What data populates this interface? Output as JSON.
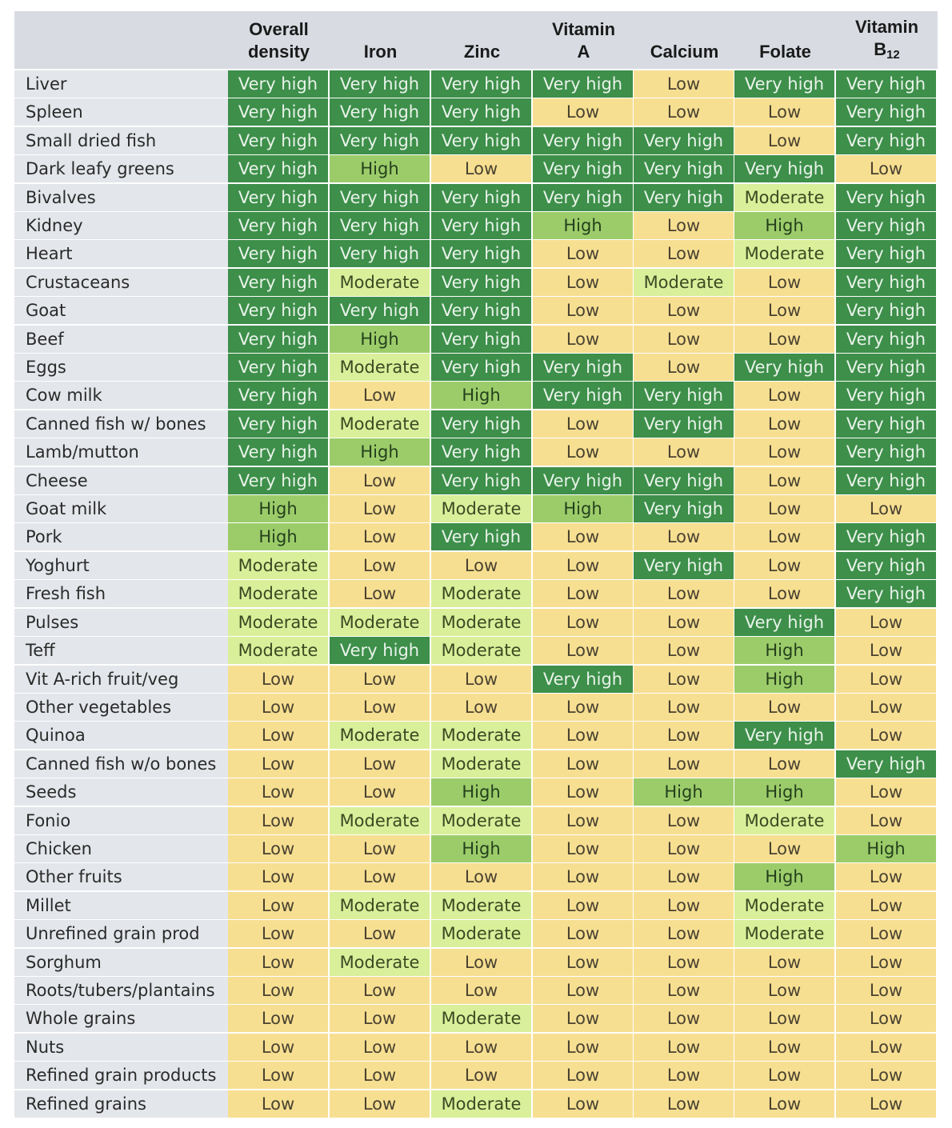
{
  "chart_data": {
    "type": "table",
    "columns": [
      {
        "lines": [
          "Overall",
          "density"
        ]
      },
      {
        "lines": [
          "Iron"
        ]
      },
      {
        "lines": [
          "Zinc"
        ]
      },
      {
        "lines": [
          "Vitamin",
          "A"
        ]
      },
      {
        "lines": [
          "Calcium"
        ]
      },
      {
        "lines": [
          "Folate"
        ]
      },
      {
        "lines": [
          "Vitamin",
          "B"
        ],
        "subscript": "12"
      }
    ],
    "level_colors": {
      "Very high": "#3d8f4a",
      "High": "#9ccc6a",
      "Moderate": "#d9ef9a",
      "Low": "#f7df92"
    },
    "rows": [
      {
        "food": "Liver",
        "values": [
          "Very high",
          "Very high",
          "Very high",
          "Very high",
          "Low",
          "Very high",
          "Very high"
        ]
      },
      {
        "food": "Spleen",
        "values": [
          "Very high",
          "Very high",
          "Very high",
          "Low",
          "Low",
          "Low",
          "Very high"
        ]
      },
      {
        "food": "Small dried fish",
        "values": [
          "Very high",
          "Very high",
          "Very high",
          "Very high",
          "Very high",
          "Low",
          "Very high"
        ]
      },
      {
        "food": "Dark leafy greens",
        "values": [
          "Very high",
          "High",
          "Low",
          "Very high",
          "Very high",
          "Very high",
          "Low"
        ]
      },
      {
        "food": "Bivalves",
        "values": [
          "Very high",
          "Very high",
          "Very high",
          "Very high",
          "Very high",
          "Moderate",
          "Very high"
        ]
      },
      {
        "food": "Kidney",
        "values": [
          "Very high",
          "Very high",
          "Very high",
          "High",
          "Low",
          "High",
          "Very high"
        ]
      },
      {
        "food": "Heart",
        "values": [
          "Very high",
          "Very high",
          "Very high",
          "Low",
          "Low",
          "Moderate",
          "Very high"
        ]
      },
      {
        "food": "Crustaceans",
        "values": [
          "Very high",
          "Moderate",
          "Very high",
          "Low",
          "Moderate",
          "Low",
          "Very high"
        ]
      },
      {
        "food": "Goat",
        "values": [
          "Very high",
          "Very high",
          "Very high",
          "Low",
          "Low",
          "Low",
          "Very high"
        ]
      },
      {
        "food": "Beef",
        "values": [
          "Very high",
          "High",
          "Very high",
          "Low",
          "Low",
          "Low",
          "Very high"
        ]
      },
      {
        "food": "Eggs",
        "values": [
          "Very high",
          "Moderate",
          "Very high",
          "Very high",
          "Low",
          "Very high",
          "Very high"
        ]
      },
      {
        "food": "Cow milk",
        "values": [
          "Very high",
          "Low",
          "High",
          "Very high",
          "Very high",
          "Low",
          "Very high"
        ]
      },
      {
        "food": "Canned fish w/ bones",
        "values": [
          "Very high",
          "Moderate",
          "Very high",
          "Low",
          "Very high",
          "Low",
          "Very high"
        ]
      },
      {
        "food": "Lamb/mutton",
        "values": [
          "Very high",
          "High",
          "Very high",
          "Low",
          "Low",
          "Low",
          "Very high"
        ]
      },
      {
        "food": "Cheese",
        "values": [
          "Very high",
          "Low",
          "Very high",
          "Very high",
          "Very high",
          "Low",
          "Very high"
        ]
      },
      {
        "food": "Goat milk",
        "values": [
          "High",
          "Low",
          "Moderate",
          "High",
          "Very high",
          "Low",
          "Low"
        ]
      },
      {
        "food": "Pork",
        "values": [
          "High",
          "Low",
          "Very high",
          "Low",
          "Low",
          "Low",
          "Very high"
        ]
      },
      {
        "food": "Yoghurt",
        "values": [
          "Moderate",
          "Low",
          "Low",
          "Low",
          "Very high",
          "Low",
          "Very high"
        ]
      },
      {
        "food": "Fresh fish",
        "values": [
          "Moderate",
          "Low",
          "Moderate",
          "Low",
          "Low",
          "Low",
          "Very high"
        ]
      },
      {
        "food": "Pulses",
        "values": [
          "Moderate",
          "Moderate",
          "Moderate",
          "Low",
          "Low",
          "Very high",
          "Low"
        ]
      },
      {
        "food": "Teff",
        "values": [
          "Moderate",
          "Very high",
          "Moderate",
          "Low",
          "Low",
          "High",
          "Low"
        ]
      },
      {
        "food": "Vit A-rich fruit/veg",
        "values": [
          "Low",
          "Low",
          "Low",
          "Very high",
          "Low",
          "High",
          "Low"
        ]
      },
      {
        "food": "Other vegetables",
        "values": [
          "Low",
          "Low",
          "Low",
          "Low",
          "Low",
          "Low",
          "Low"
        ]
      },
      {
        "food": "Quinoa",
        "values": [
          "Low",
          "Moderate",
          "Moderate",
          "Low",
          "Low",
          "Very high",
          "Low"
        ]
      },
      {
        "food": "Canned fish w/o bones",
        "values": [
          "Low",
          "Low",
          "Moderate",
          "Low",
          "Low",
          "Low",
          "Very high"
        ]
      },
      {
        "food": "Seeds",
        "values": [
          "Low",
          "Low",
          "High",
          "Low",
          "High",
          "High",
          "Low"
        ]
      },
      {
        "food": "Fonio",
        "values": [
          "Low",
          "Moderate",
          "Moderate",
          "Low",
          "Low",
          "Moderate",
          "Low"
        ]
      },
      {
        "food": "Chicken",
        "values": [
          "Low",
          "Low",
          "High",
          "Low",
          "Low",
          "Low",
          "High"
        ]
      },
      {
        "food": "Other fruits",
        "values": [
          "Low",
          "Low",
          "Low",
          "Low",
          "Low",
          "High",
          "Low"
        ]
      },
      {
        "food": "Millet",
        "values": [
          "Low",
          "Moderate",
          "Moderate",
          "Low",
          "Low",
          "Moderate",
          "Low"
        ]
      },
      {
        "food": "Unrefined grain prod",
        "values": [
          "Low",
          "Low",
          "Moderate",
          "Low",
          "Low",
          "Moderate",
          "Low"
        ]
      },
      {
        "food": "Sorghum",
        "values": [
          "Low",
          "Moderate",
          "Low",
          "Low",
          "Low",
          "Low",
          "Low"
        ]
      },
      {
        "food": "Roots/tubers/plantains",
        "values": [
          "Low",
          "Low",
          "Low",
          "Low",
          "Low",
          "Low",
          "Low"
        ]
      },
      {
        "food": "Whole grains",
        "values": [
          "Low",
          "Low",
          "Moderate",
          "Low",
          "Low",
          "Low",
          "Low"
        ]
      },
      {
        "food": "Nuts",
        "values": [
          "Low",
          "Low",
          "Low",
          "Low",
          "Low",
          "Low",
          "Low"
        ]
      },
      {
        "food": "Refined grain products",
        "values": [
          "Low",
          "Low",
          "Low",
          "Low",
          "Low",
          "Low",
          "Low"
        ]
      },
      {
        "food": "Refined grains",
        "values": [
          "Low",
          "Low",
          "Moderate",
          "Low",
          "Low",
          "Low",
          "Low"
        ]
      }
    ]
  }
}
